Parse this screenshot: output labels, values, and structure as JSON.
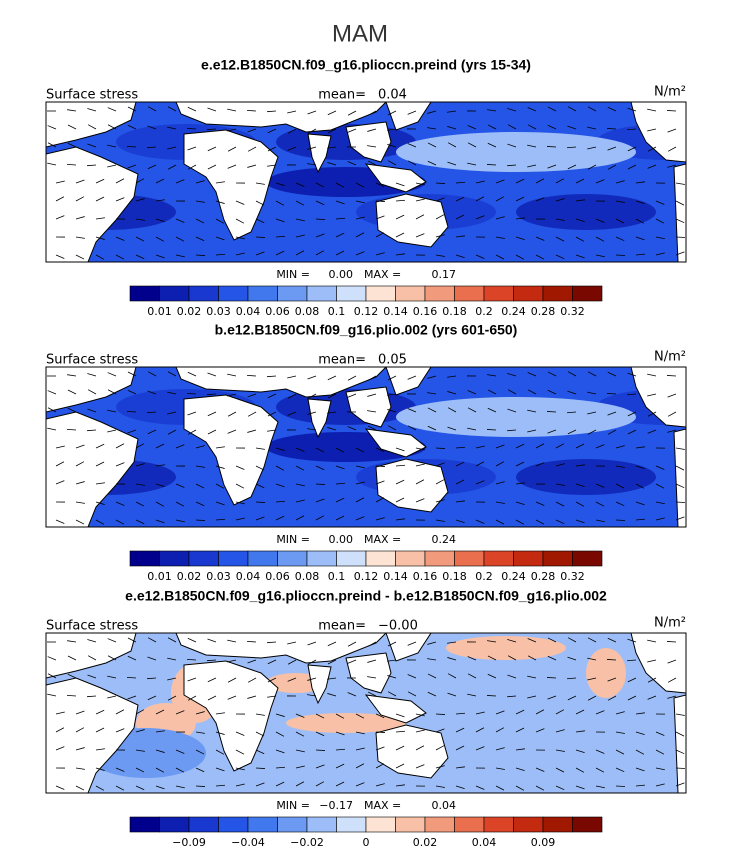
{
  "title": "MAM",
  "panels": [
    {
      "title": "e.e12.B1850CN.f09_g16.plioccn.preind (yrs 15-34)",
      "left_label": "Surface stress",
      "mean_label": "mean=",
      "mean": "0.04",
      "units": "N/m²",
      "min_label": "MIN =",
      "min": "0.00",
      "max_label": "MAX =",
      "max": "0.17",
      "field": "blue",
      "colorbar": {
        "labels": [
          "0.01",
          "0.02",
          "0.03",
          "0.04",
          "0.06",
          "0.08",
          "0.1",
          "0.12",
          "0.14",
          "0.16",
          "0.18",
          "0.2",
          "0.24",
          "0.28",
          "0.32"
        ]
      }
    },
    {
      "title": "b.e12.B1850CN.f09_g16.plio.002 (yrs 601-650)",
      "left_label": "Surface stress",
      "mean_label": "mean=",
      "mean": "0.05",
      "units": "N/m²",
      "min_label": "MIN =",
      "min": "0.00",
      "max_label": "MAX =",
      "max": "0.24",
      "field": "blue",
      "colorbar": {
        "labels": [
          "0.01",
          "0.02",
          "0.03",
          "0.04",
          "0.06",
          "0.08",
          "0.1",
          "0.12",
          "0.14",
          "0.16",
          "0.18",
          "0.2",
          "0.24",
          "0.28",
          "0.32"
        ]
      }
    },
    {
      "title": "e.e12.B1850CN.f09_g16.plioccn.preind - b.e12.B1850CN.f09_g16.plio.002",
      "left_label": "Surface stress",
      "mean_label": "mean=",
      "mean": "−0.00",
      "units": "N/m²",
      "min_label": "MIN =",
      "min": "−0.17",
      "max_label": "MAX =",
      "max": "0.04",
      "field": "diff",
      "colorbar": {
        "labels": [
          null,
          "−0.09",
          null,
          "−0.04",
          null,
          "−0.02",
          null,
          "0",
          null,
          "0.02",
          null,
          "0.04",
          null,
          "0.09",
          null
        ]
      }
    }
  ],
  "colors": [
    "#00008c",
    "#0c1fb0",
    "#1838d0",
    "#2455e6",
    "#4278ee",
    "#6c9af3",
    "#9cbdf7",
    "#cfe0fb",
    "#fde3d3",
    "#f8c0a6",
    "#f29b7c",
    "#e96f4f",
    "#dc4428",
    "#c42a10",
    "#a11800",
    "#780800"
  ]
}
